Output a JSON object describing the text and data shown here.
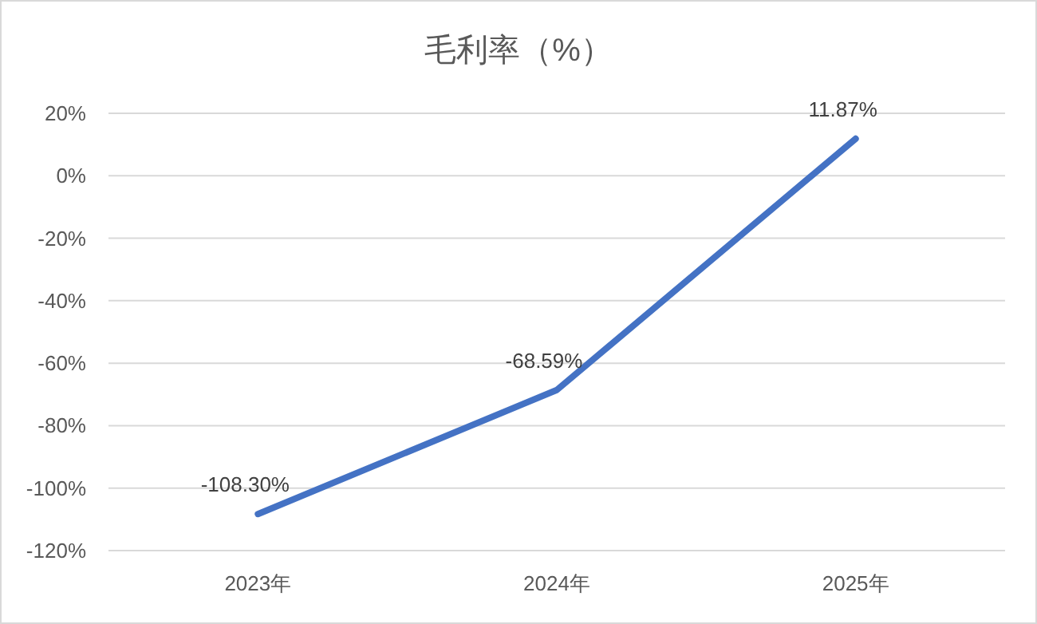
{
  "chart_data": {
    "type": "line",
    "title": "毛利率（%）",
    "categories": [
      "2023年",
      "2024年",
      "2025年"
    ],
    "series": [
      {
        "color": "#4472c4",
        "values": [
          -108.3,
          -68.59,
          11.87
        ]
      }
    ],
    "value_labels": [
      "-108.30%",
      "-68.59%",
      "11.87%"
    ],
    "ylim": [
      -120,
      20
    ],
    "yticks": [
      {
        "value": -120,
        "label": "-120%"
      },
      {
        "value": -100,
        "label": "-100%"
      },
      {
        "value": -80,
        "label": "-80%"
      },
      {
        "value": -60,
        "label": "-60%"
      },
      {
        "value": -40,
        "label": "-40%"
      },
      {
        "value": -20,
        "label": "-20%"
      },
      {
        "value": 0,
        "label": "0%"
      },
      {
        "value": 20,
        "label": "20%"
      }
    ],
    "grid": "y",
    "marker": "none",
    "line_style": "solid"
  }
}
